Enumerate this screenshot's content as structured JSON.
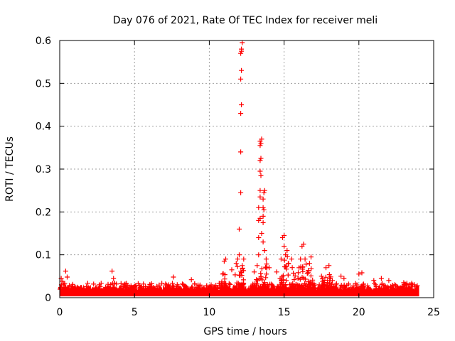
{
  "chart_data": {
    "type": "scatter",
    "title": "Day 076 of 2021, Rate Of TEC Index for receiver meli",
    "xlabel": "GPS time / hours",
    "ylabel": "ROTI / TECUs",
    "xlim": [
      0,
      25
    ],
    "ylim": [
      0,
      0.6
    ],
    "xticks": [
      "0",
      "5",
      "10",
      "15",
      "20",
      "25"
    ],
    "yticks": [
      "0",
      "0.1",
      "0.2",
      "0.3",
      "0.4",
      "0.5",
      "0.6"
    ],
    "grid": true,
    "marker": "+",
    "series": [
      {
        "name": "ROTI",
        "color": "#ff0000",
        "background_band": {
          "x": [
            0,
            24
          ],
          "y_base": 0.004,
          "y_typical": [
            0.006,
            0.03
          ]
        },
        "points": [
          [
            0.1,
            0.045
          ],
          [
            0.2,
            0.038
          ],
          [
            0.4,
            0.062
          ],
          [
            0.5,
            0.048
          ],
          [
            3.5,
            0.062
          ],
          [
            3.6,
            0.045
          ],
          [
            7.6,
            0.048
          ],
          [
            8.8,
            0.042
          ],
          [
            10.9,
            0.055
          ],
          [
            11.0,
            0.085
          ],
          [
            11.1,
            0.09
          ],
          [
            11.5,
            0.065
          ],
          [
            11.8,
            0.08
          ],
          [
            11.9,
            0.09
          ],
          [
            12.0,
            0.1
          ],
          [
            12.0,
            0.16
          ],
          [
            12.1,
            0.245
          ],
          [
            12.1,
            0.34
          ],
          [
            12.1,
            0.43
          ],
          [
            12.15,
            0.45
          ],
          [
            12.1,
            0.51
          ],
          [
            12.15,
            0.53
          ],
          [
            12.1,
            0.57
          ],
          [
            12.15,
            0.575
          ],
          [
            12.15,
            0.58
          ],
          [
            12.2,
            0.595
          ],
          [
            12.2,
            0.075
          ],
          [
            12.3,
            0.09
          ],
          [
            13.0,
            0.06
          ],
          [
            13.2,
            0.075
          ],
          [
            13.3,
            0.1
          ],
          [
            13.3,
            0.14
          ],
          [
            13.3,
            0.18
          ],
          [
            13.4,
            0.185
          ],
          [
            13.3,
            0.21
          ],
          [
            13.4,
            0.235
          ],
          [
            13.4,
            0.25
          ],
          [
            13.45,
            0.285
          ],
          [
            13.4,
            0.295
          ],
          [
            13.4,
            0.32
          ],
          [
            13.45,
            0.325
          ],
          [
            13.4,
            0.355
          ],
          [
            13.45,
            0.36
          ],
          [
            13.4,
            0.365
          ],
          [
            13.5,
            0.37
          ],
          [
            13.5,
            0.15
          ],
          [
            13.6,
            0.13
          ],
          [
            13.6,
            0.175
          ],
          [
            13.6,
            0.19
          ],
          [
            13.65,
            0.205
          ],
          [
            13.6,
            0.21
          ],
          [
            13.6,
            0.23
          ],
          [
            13.65,
            0.245
          ],
          [
            13.7,
            0.25
          ],
          [
            13.7,
            0.11
          ],
          [
            13.8,
            0.09
          ],
          [
            14.0,
            0.07
          ],
          [
            14.5,
            0.06
          ],
          [
            14.8,
            0.09
          ],
          [
            14.9,
            0.14
          ],
          [
            15.0,
            0.145
          ],
          [
            15.0,
            0.12
          ],
          [
            15.1,
            0.1
          ],
          [
            15.2,
            0.11
          ],
          [
            15.3,
            0.08
          ],
          [
            15.5,
            0.09
          ],
          [
            16.0,
            0.07
          ],
          [
            16.1,
            0.09
          ],
          [
            16.2,
            0.12
          ],
          [
            16.3,
            0.125
          ],
          [
            16.4,
            0.09
          ],
          [
            16.7,
            0.08
          ],
          [
            16.8,
            0.095
          ],
          [
            17.5,
            0.05
          ],
          [
            17.8,
            0.07
          ],
          [
            18.0,
            0.075
          ],
          [
            18.8,
            0.05
          ],
          [
            19.0,
            0.045
          ],
          [
            20.0,
            0.055
          ],
          [
            20.2,
            0.058
          ],
          [
            21.0,
            0.04
          ],
          [
            21.5,
            0.045
          ],
          [
            22.0,
            0.04
          ],
          [
            23.0,
            0.035
          ],
          [
            23.5,
            0.03
          ],
          [
            23.9,
            0.028
          ]
        ],
        "bursts": [
          {
            "x": [
              10.8,
              11.2
            ],
            "y_max": 0.085
          },
          {
            "x": [
              11.7,
              12.3
            ],
            "y_max": 0.095
          },
          {
            "x": [
              13.1,
              13.9
            ],
            "y_max": 0.1
          },
          {
            "x": [
              14.7,
              15.3
            ],
            "y_max": 0.11
          },
          {
            "x": [
              15.5,
              16.6
            ],
            "y_max": 0.095
          },
          {
            "x": [
              16.6,
              17.1
            ],
            "y_max": 0.08
          },
          {
            "x": [
              17.5,
              18.3
            ],
            "y_max": 0.065
          }
        ]
      }
    ]
  }
}
